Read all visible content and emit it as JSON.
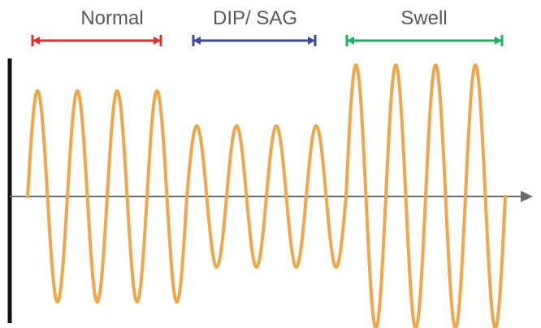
{
  "diagram": {
    "segments": [
      {
        "label": "Normal",
        "color": "#e0312f",
        "amplitude": 130,
        "cycles": 4
      },
      {
        "label": "DIP/ SAG",
        "color": "#3b4a9c",
        "amplitude": 87,
        "cycles": 4
      },
      {
        "label": "Swell",
        "color": "#1fae62",
        "amplitude": 162,
        "cycles": 4
      }
    ],
    "wave_color": "#f0a64a",
    "axis_color": "#6b6b6b",
    "vertical_axis_color": "#111111"
  }
}
